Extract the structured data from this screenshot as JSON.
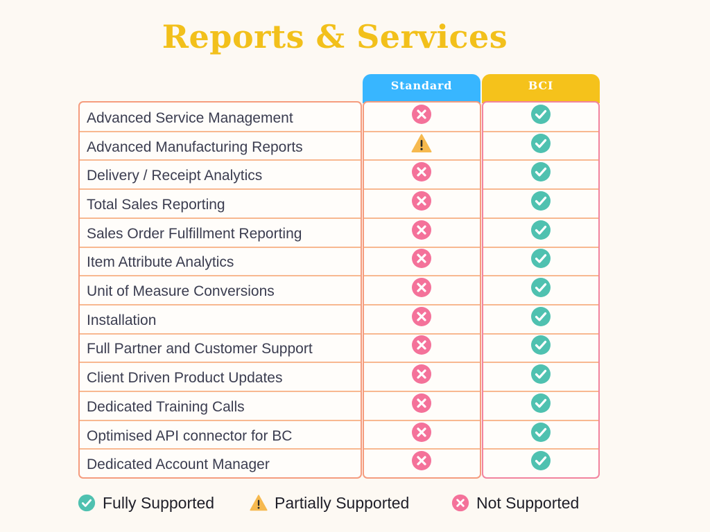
{
  "title": "Reports & Services",
  "columns": [
    {
      "label": "Standard",
      "color": "#38b6ff"
    },
    {
      "label": "BCI",
      "color": "#f5c21b"
    }
  ],
  "icons": {
    "supported": "check-circle-icon",
    "partial": "warning-triangle-icon",
    "not_supported": "x-circle-icon"
  },
  "colors": {
    "supported": "#4fc1b0",
    "partial": "#f6b94f",
    "not_supported": "#f4729a",
    "title": "#f2c01b"
  },
  "features": [
    {
      "label": "Advanced Service Management",
      "standard": "not_supported",
      "bci": "supported"
    },
    {
      "label": "Advanced Manufacturing Reports",
      "standard": "partial",
      "bci": "supported"
    },
    {
      "label": "Delivery / Receipt Analytics",
      "standard": "not_supported",
      "bci": "supported"
    },
    {
      "label": "Total Sales Reporting",
      "standard": "not_supported",
      "bci": "supported"
    },
    {
      "label": "Sales Order Fulfillment Reporting",
      "standard": "not_supported",
      "bci": "supported"
    },
    {
      "label": "Item Attribute Analytics",
      "standard": "not_supported",
      "bci": "supported"
    },
    {
      "label": "Unit of Measure Conversions",
      "standard": "not_supported",
      "bci": "supported"
    },
    {
      "label": "Installation",
      "standard": "not_supported",
      "bci": "supported"
    },
    {
      "label": "Full Partner and Customer Support",
      "standard": "not_supported",
      "bci": "supported"
    },
    {
      "label": "Client Driven Product Updates",
      "standard": "not_supported",
      "bci": "supported"
    },
    {
      "label": "Dedicated Training Calls",
      "standard": "not_supported",
      "bci": "supported"
    },
    {
      "label": "Optimised API connector for BC",
      "standard": "not_supported",
      "bci": "supported"
    },
    {
      "label": "Dedicated Account Manager",
      "standard": "not_supported",
      "bci": "supported"
    }
  ],
  "legend": [
    {
      "key": "supported",
      "label": "Fully Supported"
    },
    {
      "key": "partial",
      "label": "Partially Supported"
    },
    {
      "key": "not_supported",
      "label": "Not Supported"
    }
  ]
}
